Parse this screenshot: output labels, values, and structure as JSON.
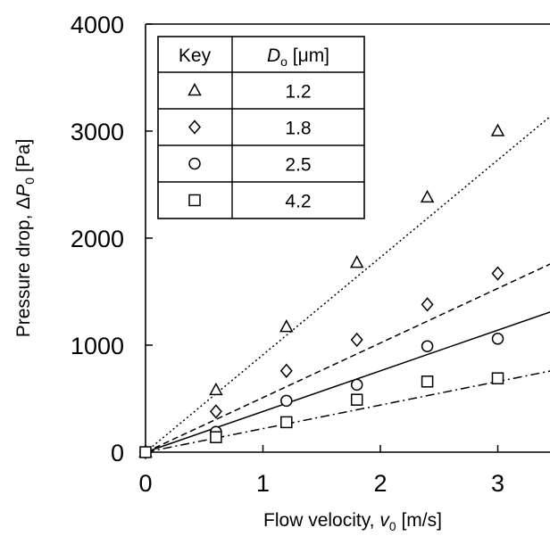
{
  "chart_data": {
    "type": "scatter",
    "xlabel": {
      "main": "Flow velocity, ",
      "var": "v",
      "sub": "0",
      "unit": " [m/s]"
    },
    "ylabel": {
      "main": "Pressure drop, Δ",
      "var": "P",
      "sub": "0",
      "unit": " [Pa]"
    },
    "xlim": [
      0,
      3.5
    ],
    "ylim": [
      0,
      4000
    ],
    "x_ticks": [
      0,
      1,
      2,
      3
    ],
    "y_ticks": [
      0,
      1000,
      2000,
      3000,
      4000
    ],
    "grid": false,
    "legend_position": "top-left",
    "legend": {
      "header_key": "Key",
      "header_var": "D",
      "header_sub": "o",
      "header_unit": " [μm]"
    },
    "series": [
      {
        "name": "1.2",
        "marker": "triangle",
        "line_style": "dotted",
        "x": [
          0,
          0.6,
          1.2,
          1.8,
          2.4,
          3.0
        ],
        "y": [
          0,
          580,
          1170,
          1770,
          2380,
          3000
        ],
        "fit_slope": 910
      },
      {
        "name": "1.8",
        "marker": "diamond",
        "line_style": "dashed",
        "x": [
          0,
          0.6,
          1.2,
          1.8,
          2.4,
          3.0
        ],
        "y": [
          0,
          380,
          760,
          1050,
          1380,
          1670
        ],
        "fit_slope": 510
      },
      {
        "name": "2.5",
        "marker": "circle",
        "line_style": "solid",
        "x": [
          0,
          0.6,
          1.2,
          1.8,
          2.4,
          3.0
        ],
        "y": [
          0,
          190,
          480,
          630,
          990,
          1060
        ],
        "fit_slope": 380
      },
      {
        "name": "4.2",
        "marker": "square",
        "line_style": "dashdot",
        "x": [
          0,
          0.6,
          1.2,
          1.8,
          2.4,
          3.0
        ],
        "y": [
          0,
          140,
          280,
          490,
          660,
          690
        ],
        "fit_slope": 220
      }
    ]
  }
}
